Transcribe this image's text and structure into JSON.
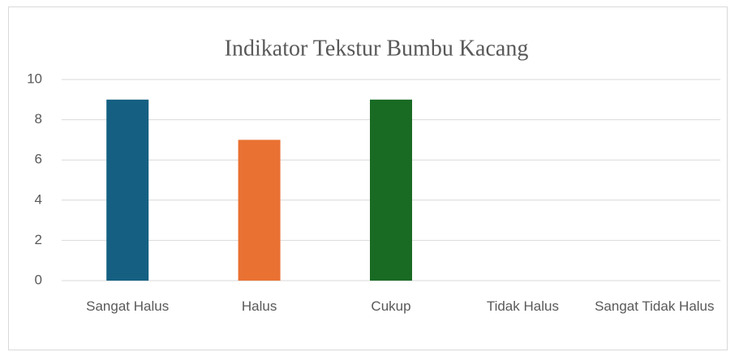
{
  "chart_data": {
    "type": "bar",
    "title": "Indikator Tekstur Bumbu Kacang",
    "categories": [
      "Sangat Halus",
      "Halus",
      "Cukup",
      "Tidak Halus",
      "Sangat Tidak Halus"
    ],
    "values": [
      9,
      7,
      9,
      0,
      0
    ],
    "colors": [
      "#156082",
      "#e97132",
      "#196b24",
      "#0f9ed5",
      "#a02b93"
    ],
    "ylim": [
      0,
      10
    ],
    "yticks": [
      0,
      2,
      4,
      6,
      8,
      10
    ],
    "grid": true
  }
}
